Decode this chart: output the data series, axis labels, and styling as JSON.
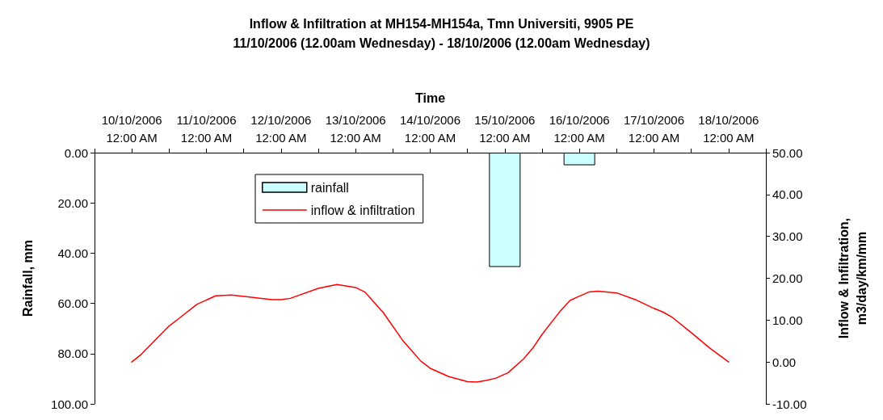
{
  "chart_data": {
    "type": "bar",
    "title": "Inflow & Infiltration at MH154-MH154a, Tmn Universiti, 9905 PE",
    "subtitle": "11/10/2006 (12.00am Wednesday) - 18/10/2006 (12.00am Wednesday)",
    "xlabel": "Time",
    "ylabel": "Rainfall, mm",
    "y2label": "Inflow & Infiltration,\nm3/day/km/mm",
    "xlim": [
      "2006-10-09T12:00",
      "2006-10-18T12:00"
    ],
    "xticks": [
      {
        "value": "2006-10-09T12:00",
        "label": null
      },
      {
        "value": "2006-10-10T00:00",
        "label": "10/10/2006\n12:00 AM"
      },
      {
        "value": "2006-10-10T12:00",
        "label": null
      },
      {
        "value": "2006-10-11T00:00",
        "label": "11/10/2006\n12:00 AM"
      },
      {
        "value": "2006-10-11T12:00",
        "label": null
      },
      {
        "value": "2006-10-12T00:00",
        "label": "12/10/2006\n12:00 AM"
      },
      {
        "value": "2006-10-12T12:00",
        "label": null
      },
      {
        "value": "2006-10-13T00:00",
        "label": "13/10/2006\n12:00 AM"
      },
      {
        "value": "2006-10-13T12:00",
        "label": null
      },
      {
        "value": "2006-10-14T00:00",
        "label": "14/10/2006\n12:00 AM"
      },
      {
        "value": "2006-10-14T12:00",
        "label": null
      },
      {
        "value": "2006-10-15T00:00",
        "label": "15/10/2006\n12:00 AM"
      },
      {
        "value": "2006-10-15T12:00",
        "label": null
      },
      {
        "value": "2006-10-16T00:00",
        "label": "16/10/2006\n12:00 AM"
      },
      {
        "value": "2006-10-16T12:00",
        "label": null
      },
      {
        "value": "2006-10-17T00:00",
        "label": "17/10/2006\n12:00 AM"
      },
      {
        "value": "2006-10-17T12:00",
        "label": null
      },
      {
        "value": "2006-10-18T00:00",
        "label": "18/10/2006\n12:00 AM"
      },
      {
        "value": "2006-10-18T12:00",
        "label": null
      }
    ],
    "ylim": [
      100,
      0
    ],
    "yticks": [
      {
        "value": 0,
        "label": "0.00"
      },
      {
        "value": 20,
        "label": "20.00"
      },
      {
        "value": 40,
        "label": "40.00"
      },
      {
        "value": 60,
        "label": "60.00"
      },
      {
        "value": 80,
        "label": "80.00"
      },
      {
        "value": 100,
        "label": "100.00"
      }
    ],
    "y2lim": [
      -10,
      50
    ],
    "y2ticks": [
      {
        "value": -10,
        "label": "-10.00"
      },
      {
        "value": 0,
        "label": "0.00"
      },
      {
        "value": 10,
        "label": "10.00"
      },
      {
        "value": 20,
        "label": "20.00"
      },
      {
        "value": 30,
        "label": "30.00"
      },
      {
        "value": 40,
        "label": "40.00"
      },
      {
        "value": 50,
        "label": "50.00"
      }
    ],
    "grid": false,
    "legend": "top",
    "line_style": "solid",
    "marker": "none",
    "series": [
      {
        "name": "rainfall",
        "color": "#ccffff",
        "x": [
          "2006-10-15T00:00",
          "2006-10-16T00:00"
        ],
        "values": [
          45.5,
          5.0
        ]
      },
      {
        "name": "inflow & infiltration",
        "type": "line",
        "axis": "y2",
        "color": "#ff0000",
        "x": [
          "2006-10-10T00:00",
          "2006-10-10T03:00",
          "2006-10-10T12:00",
          "2006-10-10T15:00",
          "2006-10-10T21:00",
          "2006-10-11T03:00",
          "2006-10-11T08:00",
          "2006-10-11T15:00",
          "2006-10-11T21:00",
          "2006-10-12T00:00",
          "2006-10-12T03:00",
          "2006-10-12T12:00",
          "2006-10-12T18:00",
          "2006-10-13T00:00",
          "2006-10-13T03:00",
          "2006-10-13T09:00",
          "2006-10-13T15:00",
          "2006-10-13T21:00",
          "2006-10-14T00:00",
          "2006-10-14T06:00",
          "2006-10-14T12:00",
          "2006-10-14T15:00",
          "2006-10-14T18:00",
          "2006-10-14T21:00",
          "2006-10-15T01:00",
          "2006-10-15T06:00",
          "2006-10-15T09:00",
          "2006-10-15T12:00",
          "2006-10-15T18:00",
          "2006-10-15T21:00",
          "2006-10-15T23:00",
          "2006-10-16T03:00",
          "2006-10-16T06:00",
          "2006-10-16T12:00",
          "2006-10-16T18:00",
          "2006-10-17T00:00",
          "2006-10-17T03:00",
          "2006-10-17T06:00",
          "2006-10-17T12:00",
          "2006-10-17T18:00",
          "2006-10-18T00:00"
        ],
        "values": [
          0,
          1.8,
          8.6,
          10.3,
          13.8,
          15.8,
          16.0,
          15.4,
          14.9,
          14.9,
          15.2,
          17.6,
          18.5,
          17.8,
          16.7,
          11.7,
          5.3,
          0.2,
          -1.5,
          -3.5,
          -4.7,
          -4.8,
          -4.4,
          -3.9,
          -2.6,
          0.7,
          3.3,
          6.6,
          12.3,
          14.7,
          15.4,
          16.7,
          16.9,
          16.5,
          14.9,
          12.8,
          11.9,
          10.6,
          7.0,
          3.3,
          0
        ]
      }
    ]
  }
}
